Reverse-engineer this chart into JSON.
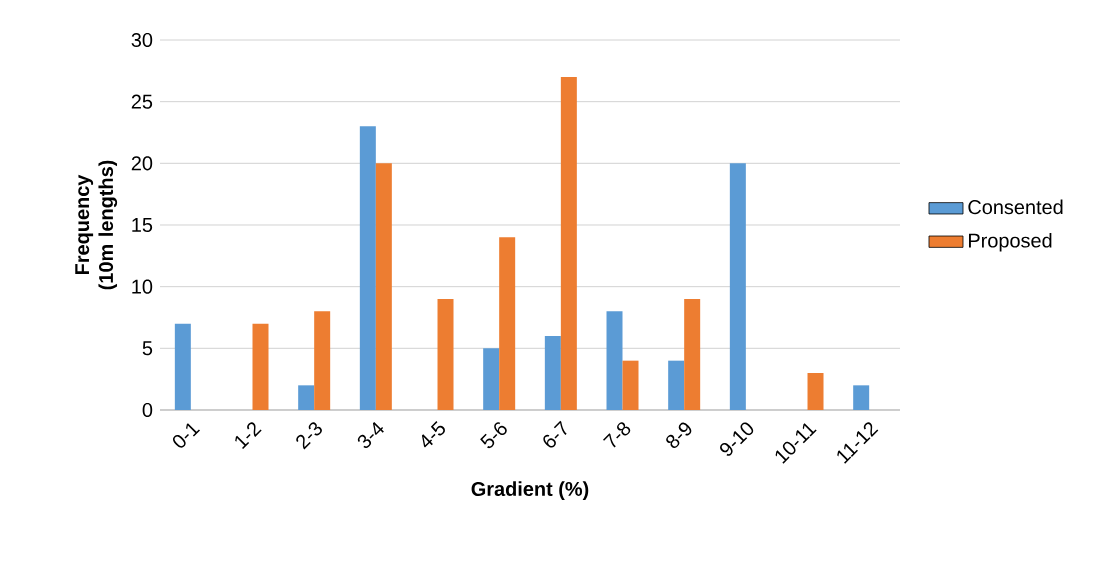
{
  "chart_data": {
    "type": "bar",
    "xlabel": "Gradient (%)",
    "ylabel": "Frequency (10m lengths)",
    "categories": [
      "0-1",
      "1-2",
      "2-3",
      "3-4",
      "4-5",
      "5-6",
      "6-7",
      "7-8",
      "8-9",
      "9-10",
      "10-11",
      "11-12"
    ],
    "series": [
      {
        "name": "Consented",
        "color": "#5b9bd5",
        "values": [
          7,
          0,
          2,
          23,
          0,
          5,
          6,
          8,
          4,
          20,
          0,
          2
        ]
      },
      {
        "name": "Proposed",
        "color": "#ed7d31",
        "values": [
          0,
          7,
          8,
          20,
          9,
          14,
          27,
          4,
          9,
          0,
          3,
          0
        ]
      }
    ],
    "ylim": [
      0,
      30
    ],
    "yticks": [
      0,
      5,
      10,
      15,
      20,
      25,
      30
    ],
    "grid": "y",
    "legend": "right"
  }
}
